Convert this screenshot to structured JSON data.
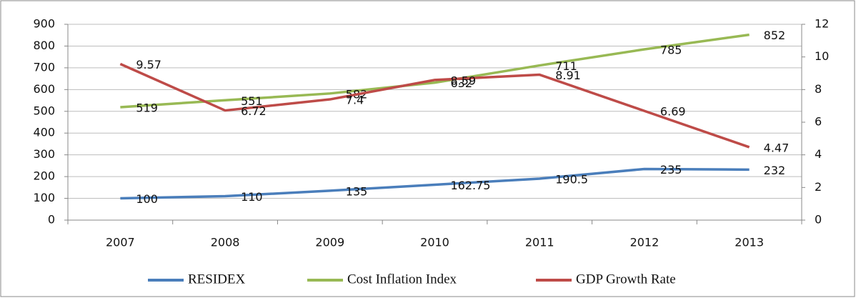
{
  "chart_data": {
    "type": "line",
    "categories": [
      "2007",
      "2008",
      "2009",
      "2010",
      "2011",
      "2012",
      "2013"
    ],
    "series": [
      {
        "name": "RESIDEX",
        "color": "#4a7ebb",
        "values": [
          100,
          110,
          135,
          162.75,
          190.5,
          235,
          232
        ]
      },
      {
        "name": "Cost Inflation Index",
        "color": "#98b954",
        "values": [
          519,
          551,
          582,
          632,
          711,
          785,
          852
        ]
      },
      {
        "name": "GDP Growth Rate",
        "color": "#be4b48",
        "axis": "y2",
        "values": [
          9.57,
          6.72,
          7.4,
          8.59,
          8.91,
          6.69,
          4.47
        ]
      }
    ],
    "ylim": [
      0,
      900
    ],
    "yticks": [
      0,
      100,
      200,
      300,
      400,
      500,
      600,
      700,
      800,
      900
    ],
    "y2lim": [
      0,
      12
    ],
    "y2ticks": [
      0,
      2,
      4,
      6,
      8,
      10,
      12
    ],
    "grid": true,
    "legend": "bottom",
    "data_labels": true
  }
}
